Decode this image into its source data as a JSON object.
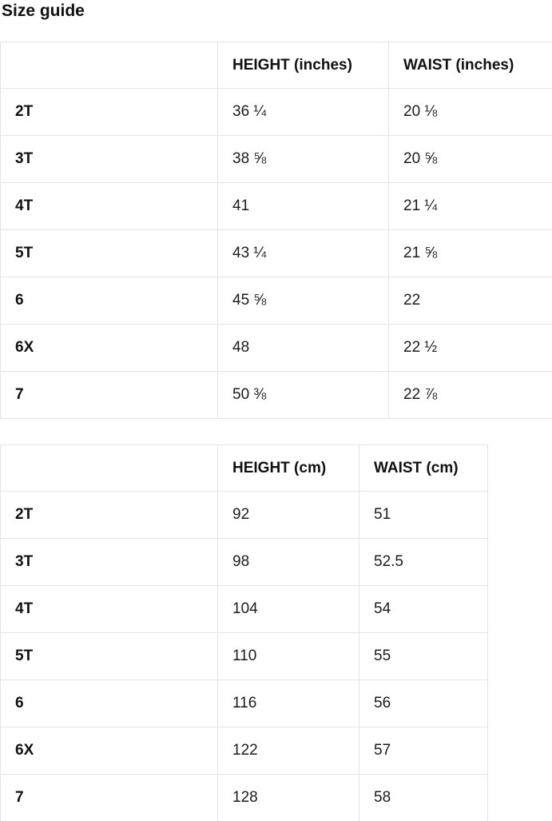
{
  "page": {
    "title": "Size guide"
  },
  "colors": {
    "background": "#ffffff",
    "text": "#1b1b1b",
    "heading_text": "#111111",
    "table_border": "#e4e4e4"
  },
  "tables": [
    {
      "name": "size-table-inches",
      "headers": [
        "",
        "HEIGHT (inches)",
        "WAIST (inches)"
      ],
      "rows": [
        {
          "size": "2T",
          "height": "36 ¼",
          "waist": "20 ⅛"
        },
        {
          "size": "3T",
          "height": "38 ⅝",
          "waist": "20 ⅝"
        },
        {
          "size": "4T",
          "height": "41",
          "waist": "21 ¼"
        },
        {
          "size": "5T",
          "height": "43 ¼",
          "waist": "21 ⅝"
        },
        {
          "size": "6",
          "height": "45 ⅝",
          "waist": "22"
        },
        {
          "size": "6X",
          "height": "48",
          "waist": "22 ½"
        },
        {
          "size": "7",
          "height": "50 ⅜",
          "waist": "22 ⅞"
        }
      ]
    },
    {
      "name": "size-table-cm",
      "headers": [
        "",
        "HEIGHT (cm)",
        "WAIST (cm)"
      ],
      "rows": [
        {
          "size": "2T",
          "height": "92",
          "waist": "51"
        },
        {
          "size": "3T",
          "height": "98",
          "waist": "52.5"
        },
        {
          "size": "4T",
          "height": "104",
          "waist": "54"
        },
        {
          "size": "5T",
          "height": "110",
          "waist": "55"
        },
        {
          "size": "6",
          "height": "116",
          "waist": "56"
        },
        {
          "size": "6X",
          "height": "122",
          "waist": "57"
        },
        {
          "size": "7",
          "height": "128",
          "waist": "58"
        }
      ]
    }
  ]
}
